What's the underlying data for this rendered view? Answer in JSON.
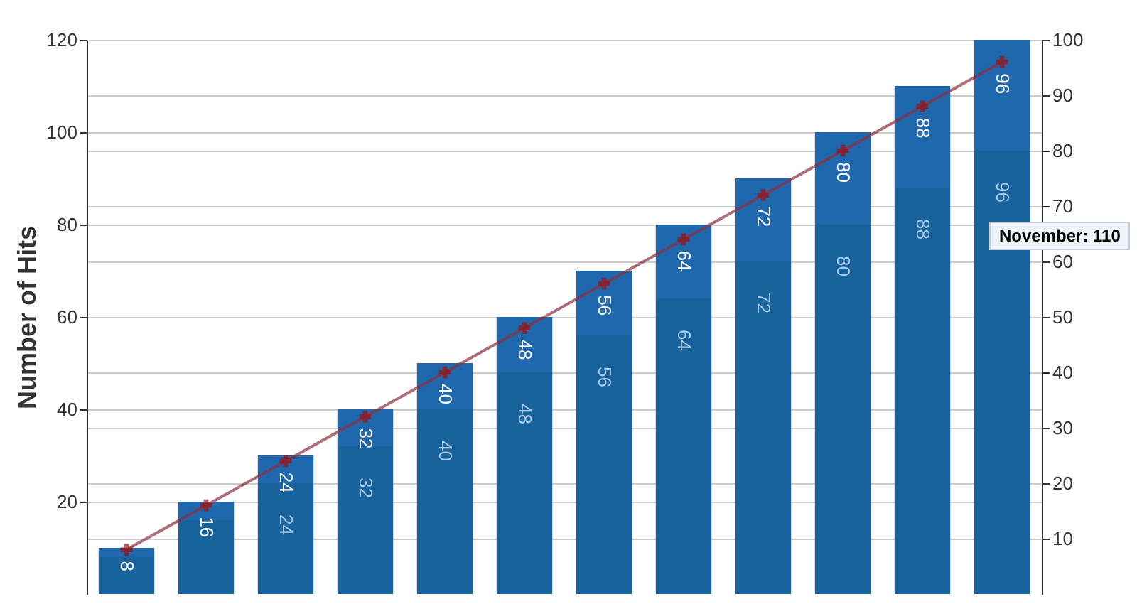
{
  "chart_data": {
    "type": "bar",
    "stacked": true,
    "ylabel": "Number of Hits",
    "categories": [
      null,
      null,
      null,
      null,
      null,
      null,
      null,
      null,
      null,
      null,
      null,
      null
    ],
    "series": [
      {
        "color": "#19639d",
        "values": [
          8,
          16,
          24,
          32,
          40,
          48,
          56,
          64,
          72,
          80,
          88,
          96
        ],
        "value_labels": [
          null,
          null,
          "24",
          "32",
          "40",
          "48",
          "56",
          "64",
          "72",
          "80",
          "88",
          "96"
        ]
      },
      {
        "color": "#1f68ad",
        "values": [
          2,
          4,
          6,
          8,
          10,
          12,
          14,
          16,
          18,
          20,
          22,
          24
        ]
      },
      {
        "type": "line",
        "axis": "y2",
        "color": "#8b2e3a",
        "marker": "cross",
        "values": [
          8,
          16,
          24,
          32,
          40,
          48,
          56,
          64,
          72,
          80,
          88,
          96
        ],
        "value_labels": [
          "8",
          "16",
          "24",
          "32",
          "40",
          "48",
          "56",
          "64",
          "72",
          "80",
          "88",
          "96"
        ]
      }
    ],
    "ylim": [
      0,
      120
    ],
    "yticks": [
      20,
      40,
      60,
      80,
      100,
      120
    ],
    "y2lim": [
      0,
      100
    ],
    "y2ticks": [
      10,
      20,
      30,
      40,
      50,
      60,
      70,
      80,
      90,
      100
    ],
    "grid": true,
    "annotations": [
      "November: 110"
    ]
  }
}
